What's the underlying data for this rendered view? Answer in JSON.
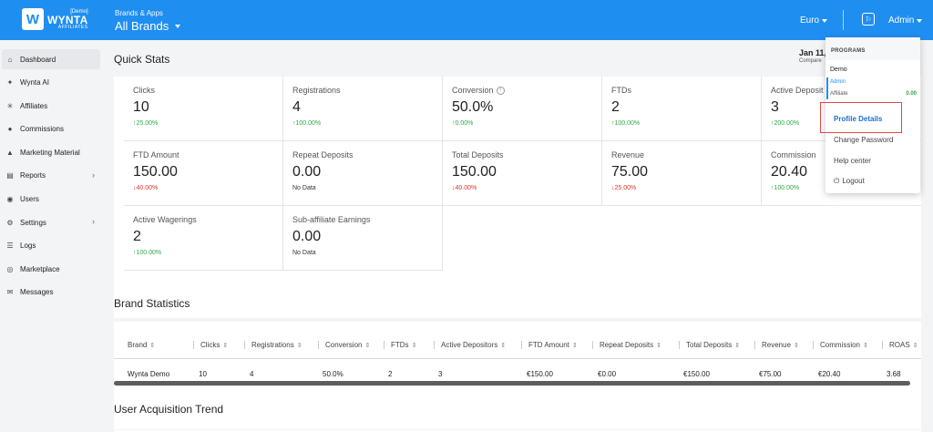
{
  "header": {
    "logo_demo": "[Demo]",
    "logo_name": "WYNTA",
    "logo_sub": "AFFILIATES",
    "brand_label": "Brands & Apps",
    "brand_value": "All Brands",
    "currency": "Euro",
    "user": "Admin",
    "accent_color": "#1f8ef1"
  },
  "sidebar": {
    "items": [
      {
        "label": "Dashboard",
        "icon": "home-icon",
        "active": true
      },
      {
        "label": "Wynta AI",
        "icon": "sparkle-icon"
      },
      {
        "label": "Affiliates",
        "icon": "network-icon"
      },
      {
        "label": "Commissions",
        "icon": "commissions-icon"
      },
      {
        "label": "Marketing Material",
        "icon": "marketing-icon"
      },
      {
        "label": "Reports",
        "icon": "report-icon",
        "chevron": true
      },
      {
        "label": "Users",
        "icon": "users-icon"
      },
      {
        "label": "Settings",
        "icon": "gear-icon",
        "chevron": true
      },
      {
        "label": "Logs",
        "icon": "logs-icon"
      },
      {
        "label": "Marketplace",
        "icon": "marketplace-icon"
      },
      {
        "label": "Messages",
        "icon": "messages-icon"
      }
    ]
  },
  "quick_stats": {
    "title": "Quick Stats",
    "date": "Jan 11,",
    "compare": "Compare",
    "cards": [
      {
        "label": "Clicks",
        "value": "10",
        "change": "25.00%",
        "trend": "up"
      },
      {
        "label": "Registrations",
        "value": "4",
        "change": "100.00%",
        "trend": "up"
      },
      {
        "label": "Conversion",
        "value": "50.0%",
        "change": "0.00%",
        "trend": "up",
        "info": true
      },
      {
        "label": "FTDs",
        "value": "2",
        "change": "100.00%",
        "trend": "up"
      },
      {
        "label": "Active Deposit",
        "value": "3",
        "change": "200.00%",
        "trend": "up"
      },
      {
        "label": "FTD Amount",
        "value": "150.00",
        "change": "40.00%",
        "trend": "down"
      },
      {
        "label": "Repeat Deposits",
        "value": "0.00",
        "change": "No Data",
        "trend": "none"
      },
      {
        "label": "Total Deposits",
        "value": "150.00",
        "change": "40.00%",
        "trend": "down"
      },
      {
        "label": "Revenue",
        "value": "75.00",
        "change": "25.00%",
        "trend": "down"
      },
      {
        "label": "Commission",
        "value": "20.40",
        "change": "100.00%",
        "trend": "up"
      },
      {
        "label": "Active Wagerings",
        "value": "2",
        "change": "100.00%",
        "trend": "up"
      },
      {
        "label": "Sub-affiliate Earnings",
        "value": "0.00",
        "change": "No Data",
        "trend": "none"
      }
    ]
  },
  "brand_stats": {
    "title": "Brand Statistics",
    "columns": [
      "Brand",
      "Clicks",
      "Registrations",
      "Conversion",
      "FTDs",
      "Active Depositors",
      "FTD Amount",
      "Repeat Deposits",
      "Total Deposits",
      "Revenue",
      "Commission",
      "ROAS"
    ],
    "rows": [
      [
        "Wynta Demo",
        "10",
        "4",
        "50.0%",
        "2",
        "3",
        "€150.00",
        "€0.00",
        "€150.00",
        "€75.00",
        "€20.40",
        "3.68"
      ]
    ]
  },
  "trend": {
    "title": "User Acquisition Trend"
  },
  "dropdown": {
    "heading": "PROGRAMS",
    "program": "Demo",
    "role": "Admin",
    "type": "Affiliate",
    "balance": "0.00",
    "items": [
      {
        "label": "Profile Details",
        "active": true
      },
      {
        "label": "Change Password"
      },
      {
        "label": "Help center"
      },
      {
        "label": "Logout",
        "icon": "power-icon"
      }
    ]
  }
}
